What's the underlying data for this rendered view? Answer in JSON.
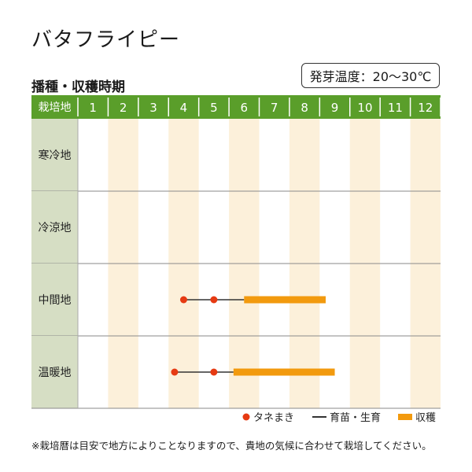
{
  "title": "バタフライピー",
  "germination": "発芽温度：20〜30℃",
  "section_title": "播種・収穫時期",
  "header_label": "栽培地",
  "note": "※栽培暦は目安で地方によりことなりますので、貴地の気候に合わせて栽培してください。",
  "colors": {
    "header_green": "#5a9e2a",
    "row_label_bg": "#d6dec4",
    "stripe": "#fcf0da",
    "sow_red": "#e63a12",
    "harvest_orange": "#f29a0e",
    "line": "#333333"
  },
  "legend": [
    {
      "label": "タネまき",
      "icon": "red-dot-icon"
    },
    {
      "label": "育苗・生育",
      "icon": "black-line-icon"
    },
    {
      "label": "収穫",
      "icon": "orange-bar-icon"
    }
  ],
  "chart_data": {
    "type": "gantt",
    "months": [
      "1",
      "2",
      "3",
      "4",
      "5",
      "6",
      "7",
      "8",
      "9",
      "10",
      "11",
      "12"
    ],
    "regions": [
      {
        "name": "寒冷地",
        "sowing": [],
        "growing": null,
        "harvest": null
      },
      {
        "name": "冷涼地",
        "sowing": [],
        "growing": null,
        "harvest": null
      },
      {
        "name": "中間地",
        "sowing": [
          4.0,
          5.0
        ],
        "growing": [
          5.0,
          6.0
        ],
        "harvest": [
          6.0,
          8.7
        ]
      },
      {
        "name": "温暖地",
        "sowing": [
          3.7,
          5.0
        ],
        "growing": [
          5.0,
          5.65
        ],
        "harvest": [
          5.65,
          9.0
        ]
      }
    ]
  }
}
